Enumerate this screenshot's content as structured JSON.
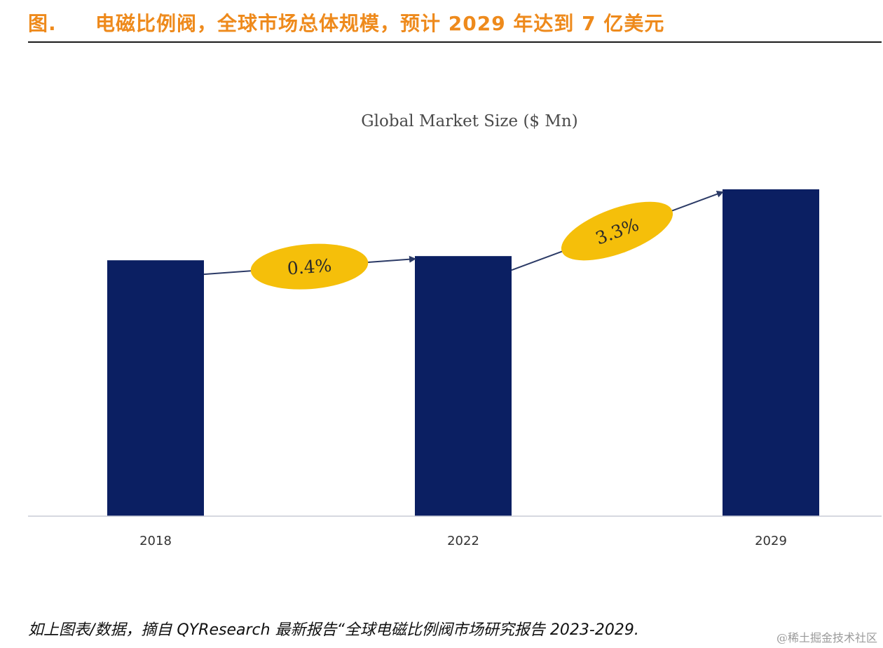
{
  "header": {
    "figure_label": "图.",
    "figure_title": "电磁比例阀，全球市场总体规模，预计 2029 年达到 7 亿美元"
  },
  "colors": {
    "title": "#ee8a1c",
    "bar": "#0b1f62",
    "bubble": "#f5bf0a",
    "arrow": "#2b3a66",
    "axis": "#c8ccd6"
  },
  "chart_data": {
    "type": "bar",
    "title": "Global Market Size ($ Mn)",
    "xlabel": "",
    "ylabel": "",
    "categories": [
      "2018",
      "2022",
      "2029"
    ],
    "values": [
      548,
      557,
      700
    ],
    "ylim": [
      0,
      760
    ],
    "grid": false,
    "annotations": [
      {
        "from": "2018",
        "to": "2022",
        "label": "0.4%",
        "type": "CAGR arrow"
      },
      {
        "from": "2022",
        "to": "2029",
        "label": "3.3%",
        "type": "CAGR arrow"
      }
    ]
  },
  "footer": {
    "source_note": "如上图表/数据，摘自 QYResearch 最新报告“全球电磁比例阀市场研究报告 2023-2029.",
    "watermark": "@稀土掘金技术社区"
  }
}
